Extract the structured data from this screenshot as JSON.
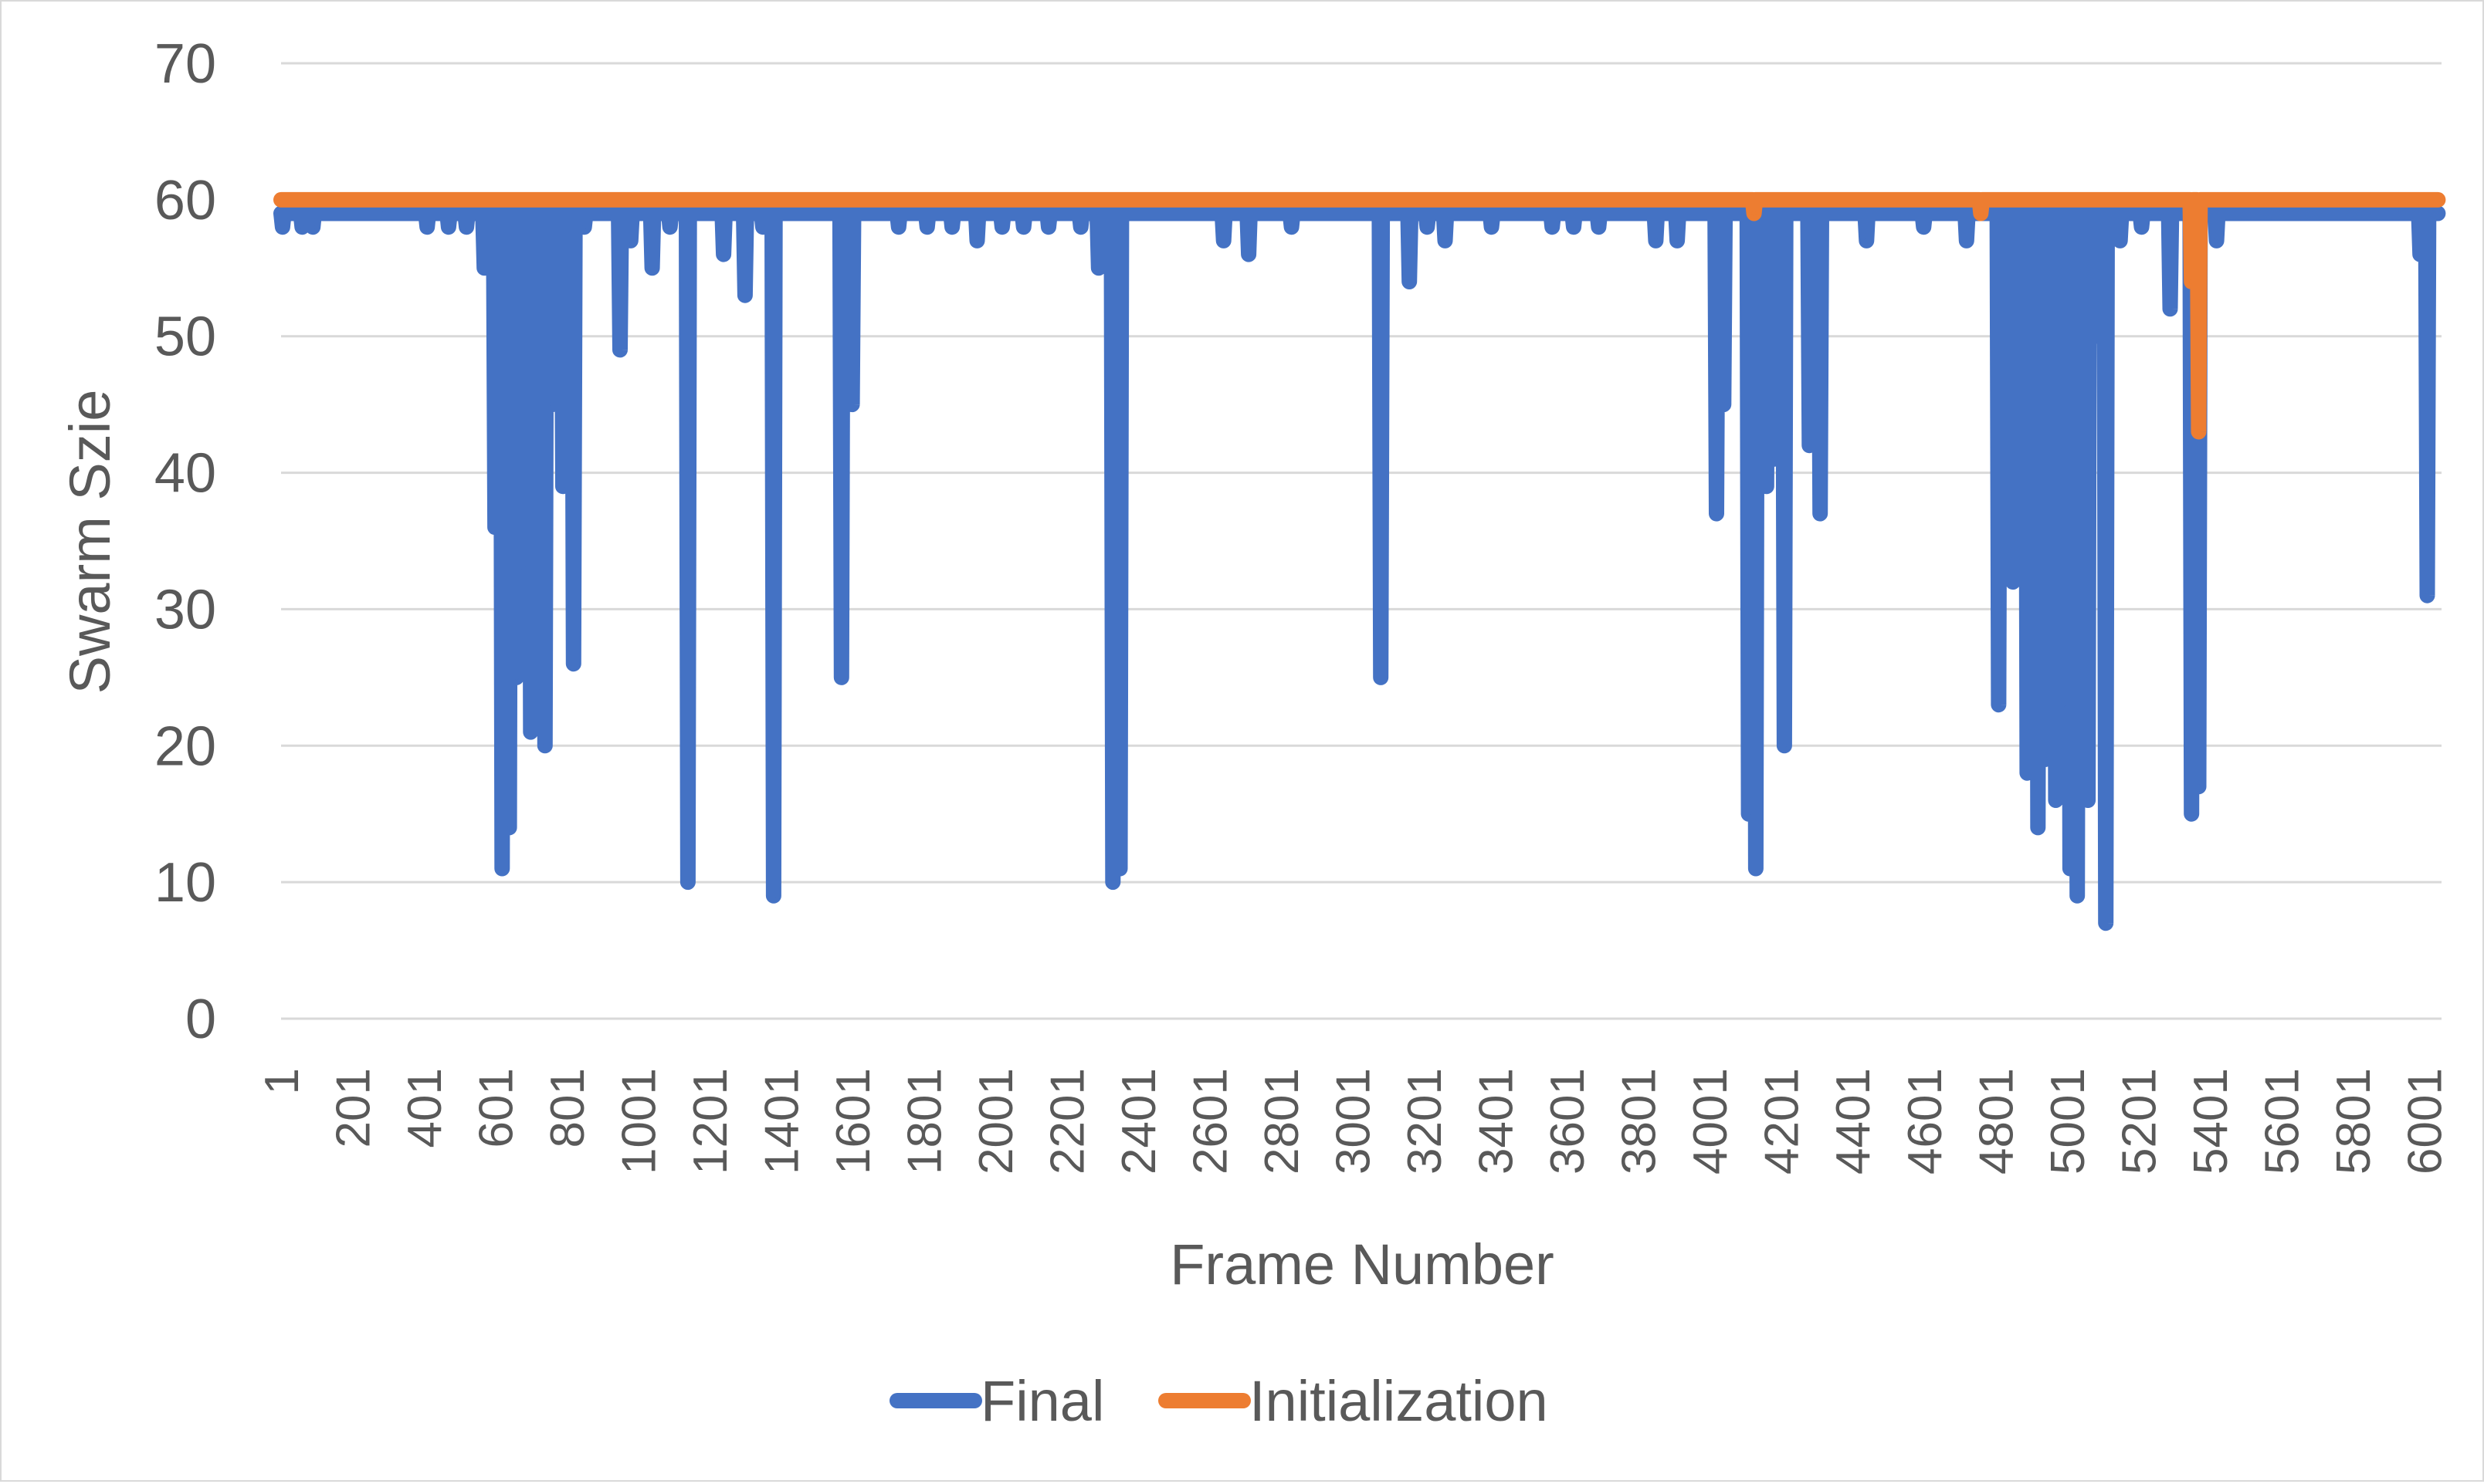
{
  "chart_data": {
    "type": "line",
    "ylabel": "Swarm Szie",
    "xlabel": "Frame Number",
    "ylim": [
      0,
      70
    ],
    "yticks": [
      "0",
      "10",
      "20",
      "30",
      "40",
      "50",
      "60",
      "70"
    ],
    "xlim": [
      1,
      6050
    ],
    "xticks": [
      "1",
      "201",
      "401",
      "601",
      "801",
      "1001",
      "1201",
      "1401",
      "1601",
      "1801",
      "2001",
      "2201",
      "2401",
      "2601",
      "2801",
      "3001",
      "3201",
      "3401",
      "3601",
      "3801",
      "4001",
      "4201",
      "4401",
      "4601",
      "4801",
      "5001",
      "5201",
      "5401",
      "5601",
      "5801",
      "6001"
    ],
    "grid": true,
    "legend_position": "bottom",
    "series": [
      {
        "name": "Final",
        "color": "#4472c4",
        "baseline": 59,
        "dips": [
          [
            5,
            58
          ],
          [
            60,
            58
          ],
          [
            90,
            58
          ],
          [
            290,
            59
          ],
          [
            410,
            58
          ],
          [
            470,
            58
          ],
          [
            520,
            58
          ],
          [
            570,
            55
          ],
          [
            600,
            36
          ],
          [
            620,
            11
          ],
          [
            640,
            14
          ],
          [
            660,
            25
          ],
          [
            680,
            33
          ],
          [
            700,
            21
          ],
          [
            720,
            24
          ],
          [
            740,
            20
          ],
          [
            760,
            45
          ],
          [
            790,
            39
          ],
          [
            820,
            26
          ],
          [
            850,
            58
          ],
          [
            950,
            49
          ],
          [
            980,
            57
          ],
          [
            1040,
            55
          ],
          [
            1090,
            58
          ],
          [
            1140,
            10
          ],
          [
            1240,
            56
          ],
          [
            1300,
            53
          ],
          [
            1350,
            58
          ],
          [
            1380,
            9
          ],
          [
            1570,
            25
          ],
          [
            1600,
            45
          ],
          [
            1730,
            58
          ],
          [
            1810,
            58
          ],
          [
            1880,
            58
          ],
          [
            1950,
            57
          ],
          [
            2020,
            58
          ],
          [
            2080,
            58
          ],
          [
            2150,
            58
          ],
          [
            2240,
            58
          ],
          [
            2290,
            55
          ],
          [
            2330,
            10
          ],
          [
            2350,
            11
          ],
          [
            2640,
            57
          ],
          [
            2710,
            56
          ],
          [
            2830,
            58
          ],
          [
            3080,
            25
          ],
          [
            3160,
            54
          ],
          [
            3210,
            58
          ],
          [
            3260,
            57
          ],
          [
            3390,
            58
          ],
          [
            3560,
            58
          ],
          [
            3620,
            58
          ],
          [
            3690,
            58
          ],
          [
            3850,
            57
          ],
          [
            3910,
            57
          ],
          [
            4020,
            37
          ],
          [
            4040,
            45
          ],
          [
            4110,
            15
          ],
          [
            4130,
            11
          ],
          [
            4160,
            39
          ],
          [
            4180,
            41
          ],
          [
            4210,
            20
          ],
          [
            4280,
            42
          ],
          [
            4310,
            37
          ],
          [
            4440,
            57
          ],
          [
            4600,
            58
          ],
          [
            4720,
            57
          ],
          [
            4810,
            23
          ],
          [
            4850,
            32
          ],
          [
            4890,
            18
          ],
          [
            4920,
            14
          ],
          [
            4940,
            19
          ],
          [
            4970,
            16
          ],
          [
            4990,
            23
          ],
          [
            5010,
            11
          ],
          [
            5030,
            9
          ],
          [
            5060,
            16
          ],
          [
            5080,
            50
          ],
          [
            5110,
            7
          ],
          [
            5150,
            57
          ],
          [
            5210,
            58
          ],
          [
            5290,
            52
          ],
          [
            5350,
            15
          ],
          [
            5370,
            17
          ],
          [
            5420,
            57
          ],
          [
            5990,
            56
          ],
          [
            6010,
            31
          ]
        ]
      },
      {
        "name": "Initialization",
        "color": "#ed7d31",
        "baseline": 60,
        "dips": [
          [
            4125,
            59
          ],
          [
            4760,
            59
          ],
          [
            5350,
            54
          ],
          [
            5370,
            43
          ]
        ]
      }
    ]
  }
}
